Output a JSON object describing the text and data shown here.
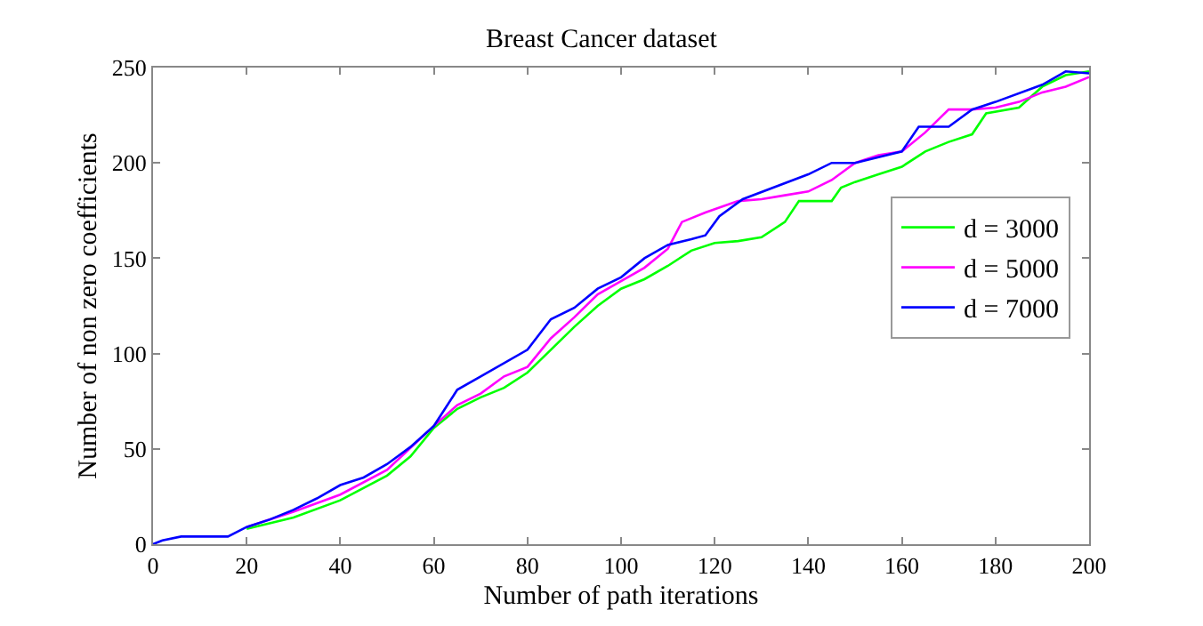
{
  "chart_data": {
    "type": "line",
    "title": "Breast Cancer dataset",
    "xlabel": "Number of path iterations",
    "ylabel": "Number of non zero coefficients",
    "xlim": [
      0,
      200
    ],
    "xticks": [
      0,
      20,
      40,
      60,
      80,
      100,
      120,
      140,
      160,
      180,
      200
    ],
    "ylim": [
      0,
      250
    ],
    "yticks": [
      0,
      50,
      100,
      150,
      200,
      250
    ],
    "grid": false,
    "legend": "right",
    "line_style": "solid",
    "marker": "none",
    "series": [
      {
        "name": "d = 3000",
        "color": "#00ff00",
        "x": [
          20,
          30,
          40,
          50,
          55,
          60,
          65,
          70,
          75,
          80,
          85,
          90,
          95,
          100,
          105,
          110,
          115,
          120,
          125,
          130,
          135,
          138,
          145,
          147,
          150,
          155,
          160,
          165,
          170,
          175,
          178,
          185,
          190,
          195,
          200
        ],
        "values": [
          8,
          14,
          23,
          36,
          46,
          61,
          71,
          77,
          82,
          90,
          102,
          114,
          125,
          134,
          139,
          146,
          154,
          158,
          159,
          161,
          169,
          180,
          180,
          187,
          190,
          194,
          198,
          206,
          211,
          215,
          226,
          229,
          240,
          246,
          248
        ]
      },
      {
        "name": "d = 5000",
        "color": "#ff00ff",
        "x": [
          20,
          30,
          40,
          50,
          60,
          65,
          70,
          75,
          80,
          85,
          90,
          95,
          100,
          105,
          110,
          113,
          118,
          125,
          130,
          135,
          140,
          145,
          150,
          155,
          160,
          165,
          170,
          175,
          180,
          185,
          190,
          195,
          200
        ],
        "values": [
          9,
          17,
          26,
          39,
          62,
          73,
          79,
          88,
          93,
          108,
          119,
          131,
          138,
          145,
          155,
          169,
          174,
          180,
          181,
          183,
          185,
          191,
          200,
          204,
          206,
          216,
          228,
          228,
          229,
          232,
          237,
          240,
          245
        ]
      },
      {
        "name": "d = 7000",
        "color": "#0000ff",
        "x": [
          0,
          2,
          6,
          16,
          20,
          25,
          30,
          35,
          40,
          45,
          50,
          55,
          60,
          65,
          70,
          80,
          85,
          90,
          95,
          100,
          105,
          110,
          115,
          118,
          121,
          126,
          140,
          145,
          150,
          160,
          163.6,
          170,
          175,
          180,
          190,
          195,
          200
        ],
        "values": [
          0,
          2,
          4,
          4,
          9,
          13,
          18,
          24,
          31,
          35,
          42,
          51,
          62,
          81,
          88,
          102,
          118,
          124,
          134,
          140,
          150,
          157,
          160,
          162,
          172,
          181,
          194,
          200,
          200,
          206,
          219,
          219,
          228,
          232,
          241,
          248,
          247
        ]
      }
    ]
  }
}
